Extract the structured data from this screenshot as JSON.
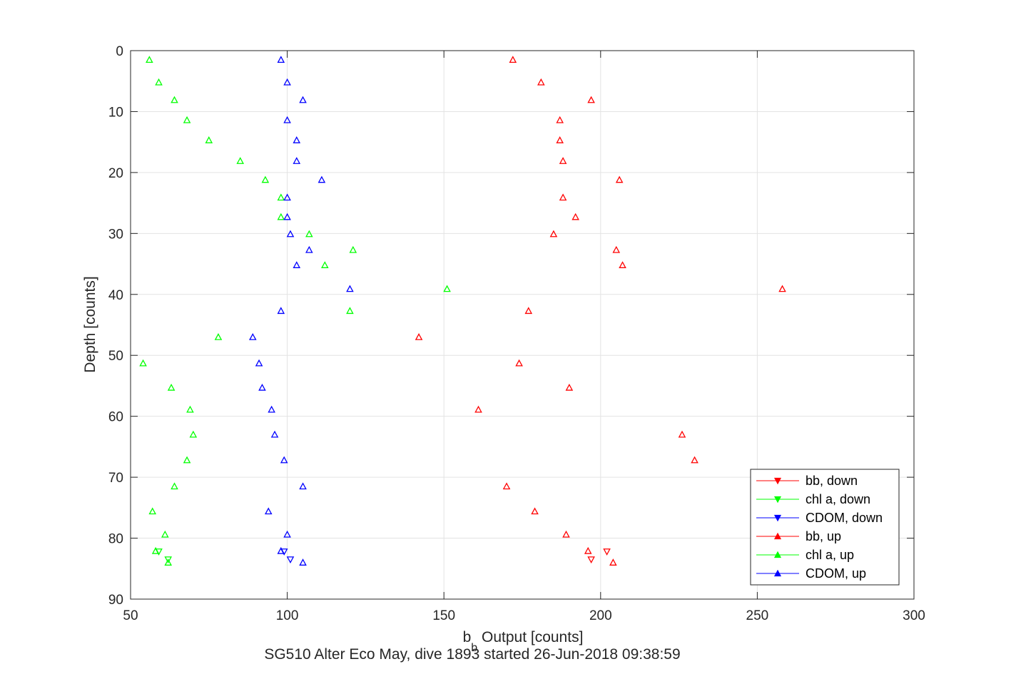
{
  "chart_data": {
    "type": "scatter",
    "title": "SG510 Alter Eco May, dive 1893 started 26-Jun-2018 09:38:59",
    "xlabel_main": "b",
    "xlabel_sub": "b",
    "xlabel_rest": " Output [counts]",
    "ylabel": "Depth [counts]",
    "xlim": [
      50,
      300
    ],
    "ylim": [
      0,
      90
    ],
    "y_reversed": true,
    "grid": true,
    "legend_position": "bottom-right",
    "x_ticks": [
      50,
      100,
      150,
      200,
      250,
      300
    ],
    "y_ticks": [
      0,
      10,
      20,
      30,
      40,
      50,
      60,
      70,
      80,
      90
    ],
    "series": [
      {
        "name": "bb, down",
        "color": "#ff0000",
        "marker": "triangle-down",
        "points": [
          [
            202,
            82.2
          ],
          [
            197,
            83.5
          ]
        ]
      },
      {
        "name": "chl a, down",
        "color": "#00ff00",
        "marker": "triangle-down",
        "points": [
          [
            59,
            82.2
          ],
          [
            62,
            83.5
          ]
        ]
      },
      {
        "name": "CDOM, down",
        "color": "#0000ff",
        "marker": "triangle-down",
        "points": [
          [
            99,
            82.2
          ],
          [
            101,
            83.5
          ]
        ]
      },
      {
        "name": "bb, up",
        "color": "#ff0000",
        "marker": "triangle-up",
        "points": [
          [
            172,
            1.5
          ],
          [
            181,
            5.2
          ],
          [
            197,
            8.1
          ],
          [
            187,
            11.4
          ],
          [
            187,
            14.7
          ],
          [
            188,
            18.1
          ],
          [
            206,
            21.2
          ],
          [
            188,
            24.1
          ],
          [
            192,
            27.3
          ],
          [
            185,
            30.1
          ],
          [
            205,
            32.7
          ],
          [
            207,
            35.2
          ],
          [
            258,
            39.1
          ],
          [
            177,
            42.7
          ],
          [
            142,
            47.0
          ],
          [
            174,
            51.3
          ],
          [
            190,
            55.3
          ],
          [
            161,
            58.9
          ],
          [
            226,
            63.0
          ],
          [
            230,
            67.2
          ],
          [
            170,
            71.5
          ],
          [
            179,
            75.6
          ],
          [
            189,
            79.4
          ],
          [
            196,
            82.1
          ],
          [
            204,
            84.0
          ]
        ]
      },
      {
        "name": "chl a, up",
        "color": "#00ff00",
        "marker": "triangle-up",
        "points": [
          [
            56,
            1.5
          ],
          [
            59,
            5.2
          ],
          [
            64,
            8.1
          ],
          [
            68,
            11.4
          ],
          [
            75,
            14.7
          ],
          [
            85,
            18.1
          ],
          [
            93,
            21.2
          ],
          [
            98,
            24.1
          ],
          [
            98,
            27.3
          ],
          [
            107,
            30.1
          ],
          [
            121,
            32.7
          ],
          [
            112,
            35.2
          ],
          [
            151,
            39.1
          ],
          [
            120,
            42.7
          ],
          [
            78,
            47.0
          ],
          [
            54,
            51.3
          ],
          [
            63,
            55.3
          ],
          [
            69,
            58.9
          ],
          [
            70,
            63.0
          ],
          [
            68,
            67.2
          ],
          [
            64,
            71.5
          ],
          [
            57,
            75.6
          ],
          [
            61,
            79.4
          ],
          [
            58,
            82.1
          ],
          [
            62,
            84.0
          ]
        ]
      },
      {
        "name": "CDOM, up",
        "color": "#0000ff",
        "marker": "triangle-up",
        "points": [
          [
            98,
            1.5
          ],
          [
            100,
            5.2
          ],
          [
            105,
            8.1
          ],
          [
            100,
            11.4
          ],
          [
            103,
            14.7
          ],
          [
            103,
            18.1
          ],
          [
            111,
            21.2
          ],
          [
            100,
            24.1
          ],
          [
            100,
            27.3
          ],
          [
            101,
            30.1
          ],
          [
            107,
            32.7
          ],
          [
            103,
            35.2
          ],
          [
            120,
            39.1
          ],
          [
            98,
            42.7
          ],
          [
            89,
            47.0
          ],
          [
            91,
            51.3
          ],
          [
            92,
            55.3
          ],
          [
            95,
            58.9
          ],
          [
            96,
            63.0
          ],
          [
            99,
            67.2
          ],
          [
            105,
            71.5
          ],
          [
            94,
            75.6
          ],
          [
            100,
            79.4
          ],
          [
            98,
            82.1
          ],
          [
            105,
            84.0
          ]
        ]
      }
    ]
  }
}
